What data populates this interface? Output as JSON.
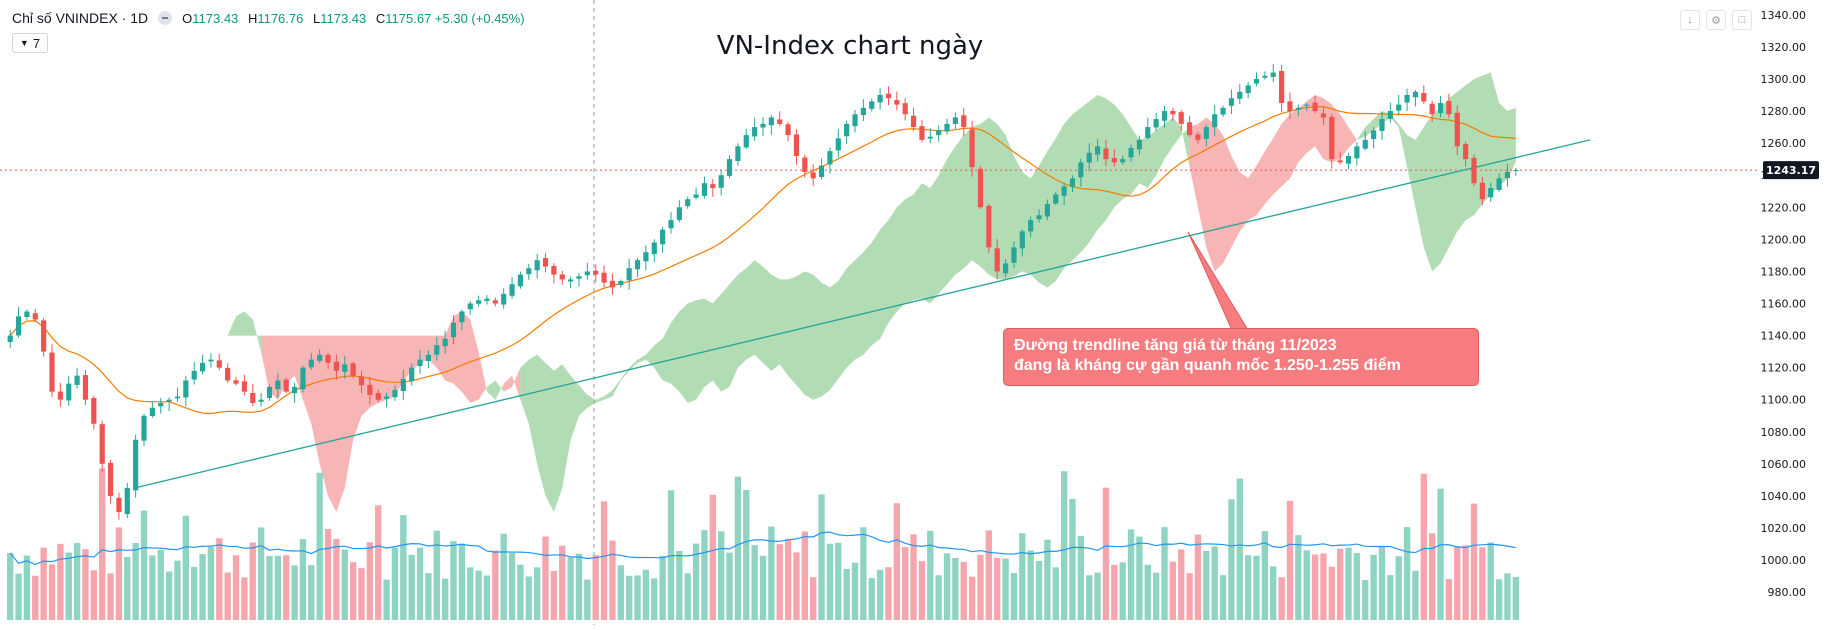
{
  "legend": {
    "symbol": "Chỉ số VNINDEX · 1D",
    "open_label": "O",
    "open": "1173.43",
    "high_label": "H",
    "high": "1176.76",
    "low_label": "L",
    "low": "1173.43",
    "close_label": "C",
    "close": "1175.67",
    "change": "+5.30 (+0.45%)"
  },
  "indicators_button": {
    "count": "7"
  },
  "toolbar": {
    "icons": [
      "arrow-down-icon",
      "settings-icon",
      "fullscreen-icon"
    ]
  },
  "annotation": {
    "line1": "Đường trendline tăng giá từ tháng 11/2023",
    "line2": "đang là kháng cự gần quanh mốc 1.250-1.255 điểm"
  },
  "colors": {
    "up": "#26a69a",
    "down": "#ef5350",
    "cloud_bull": "#a5d6a7",
    "cloud_bear": "#f7a8a8",
    "ma_line": "#f57c00",
    "volume_ma": "#2196f3",
    "trendline": "#26a69a",
    "price_label_bg": "#131722",
    "annotation_bg": "#f77c80"
  },
  "chart_data": {
    "type": "candlestick",
    "title": "VN-Index chart ngày",
    "y_ticks": [
      "1340.00",
      "1320.00",
      "1300.00",
      "1280.00",
      "1260.00",
      "1240.00",
      "1220.00",
      "1200.00",
      "1180.00",
      "1160.00",
      "1140.00",
      "1120.00",
      "1100.00",
      "1080.00",
      "1060.00",
      "1040.00",
      "1020.00",
      "1000.00",
      "980.00"
    ],
    "ylim": [
      972,
      1343
    ],
    "current_price": "1243.17",
    "grid": false,
    "series": [
      {
        "name": "Giá",
        "kind": "candles",
        "close": [
          1140,
          1152,
          1155,
          1150,
          1130,
          1105,
          1100,
          1110,
          1115,
          1100,
          1085,
          1060,
          1040,
          1030,
          1045,
          1075,
          1090,
          1095,
          1098,
          1100,
          1102,
          1112,
          1118,
          1123,
          1125,
          1120,
          1112,
          1110,
          1105,
          1098,
          1100,
          1108,
          1112,
          1105,
          1108,
          1120,
          1125,
          1128,
          1123,
          1118,
          1122,
          1115,
          1109,
          1103,
          1100,
          1102,
          1106,
          1113,
          1120,
          1125,
          1128,
          1134,
          1138,
          1148,
          1155,
          1160,
          1162,
          1163,
          1160,
          1166,
          1172,
          1178,
          1182,
          1187,
          1183,
          1178,
          1175,
          1175,
          1177,
          1180,
          1178,
          1173,
          1170,
          1174,
          1182,
          1187,
          1192,
          1198,
          1206,
          1212,
          1220,
          1225,
          1228,
          1235,
          1232,
          1240,
          1250,
          1258,
          1265,
          1270,
          1272,
          1276,
          1272,
          1265,
          1252,
          1242,
          1238,
          1246,
          1255,
          1263,
          1272,
          1278,
          1282,
          1286,
          1290,
          1288,
          1284,
          1278,
          1270,
          1262,
          1264,
          1268,
          1272,
          1276,
          1270,
          1245,
          1220,
          1195,
          1180,
          1185,
          1195,
          1205,
          1212,
          1215,
          1222,
          1228,
          1233,
          1238,
          1248,
          1254,
          1258,
          1250,
          1248,
          1250,
          1257,
          1262,
          1270,
          1275,
          1280,
          1278,
          1272,
          1265,
          1262,
          1270,
          1278,
          1282,
          1288,
          1292,
          1296,
          1300,
          1302,
          1304,
          1285,
          1280,
          1282,
          1284,
          1280,
          1276,
          1250,
          1248,
          1252,
          1258,
          1262,
          1268,
          1275,
          1280,
          1284,
          1290,
          1292,
          1286,
          1278,
          1285,
          1278,
          1258,
          1250,
          1235,
          1225,
          1232,
          1238,
          1242,
          1243.17
        ]
      },
      {
        "name": "MA",
        "kind": "line"
      },
      {
        "name": "Ichimoku",
        "kind": "cloud"
      },
      {
        "name": "Volume",
        "kind": "bars"
      },
      {
        "name": "Volume MA",
        "kind": "line"
      }
    ],
    "annotations": [
      "trendline from Nov 2023 lows (~1045) rising to ~1262"
    ]
  }
}
